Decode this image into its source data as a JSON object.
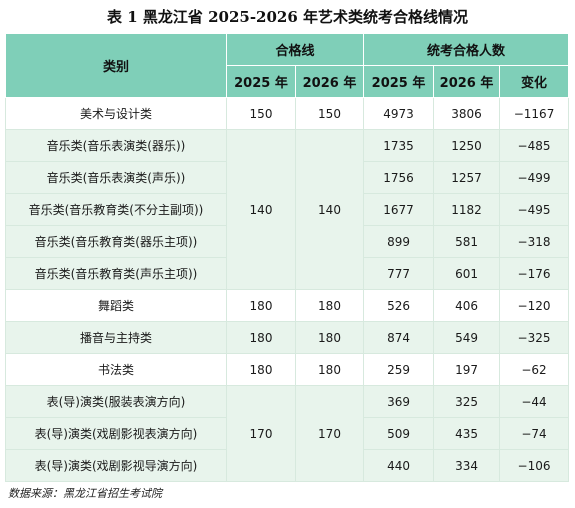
{
  "title": "表 1 黑龙江省 2025-2026 年艺术类统考合格线情况",
  "headers": {
    "category": "类别",
    "pass_line": "合格线",
    "qualified_count": "统考合格人数",
    "y2025": "2025 年",
    "y2026": "2026 年",
    "change": "变化"
  },
  "rows": [
    {
      "category": "美术与设计类",
      "line2025": "150",
      "line2026": "150",
      "n2025": "4973",
      "n2026": "3806",
      "change": "−1167"
    },
    {
      "category": "音乐类(音乐表演类(器乐))",
      "line2025": "140",
      "line2026": "140",
      "n2025": "1735",
      "n2026": "1250",
      "change": "−485"
    },
    {
      "category": "音乐类(音乐表演类(声乐))",
      "n2025": "1756",
      "n2026": "1257",
      "change": "−499"
    },
    {
      "category": "音乐类(音乐教育类(不分主副项))",
      "n2025": "1677",
      "n2026": "1182",
      "change": "−495"
    },
    {
      "category": "音乐类(音乐教育类(器乐主项))",
      "n2025": "899",
      "n2026": "581",
      "change": "−318"
    },
    {
      "category": "音乐类(音乐教育类(声乐主项))",
      "n2025": "777",
      "n2026": "601",
      "change": "−176"
    },
    {
      "category": "舞蹈类",
      "line2025": "180",
      "line2026": "180",
      "n2025": "526",
      "n2026": "406",
      "change": "−120"
    },
    {
      "category": "播音与主持类",
      "line2025": "180",
      "line2026": "180",
      "n2025": "874",
      "n2026": "549",
      "change": "−325"
    },
    {
      "category": "书法类",
      "line2025": "180",
      "line2026": "180",
      "n2025": "259",
      "n2026": "197",
      "change": "−62"
    },
    {
      "category": "表(导)演类(服装表演方向)",
      "line2025": "170",
      "line2026": "170",
      "n2025": "369",
      "n2026": "325",
      "change": "−44"
    },
    {
      "category": "表(导)演类(戏剧影视表演方向)",
      "n2025": "509",
      "n2026": "435",
      "change": "−74"
    },
    {
      "category": "表(导)演类(戏剧影视导演方向)",
      "n2025": "440",
      "n2026": "334",
      "change": "−106"
    }
  ],
  "source": "数据来源：黑龙江省招生考试院",
  "colors": {
    "header": "#7fcfb8",
    "row_alt": "#e8f4ec",
    "row_plain": "#ffffff"
  }
}
